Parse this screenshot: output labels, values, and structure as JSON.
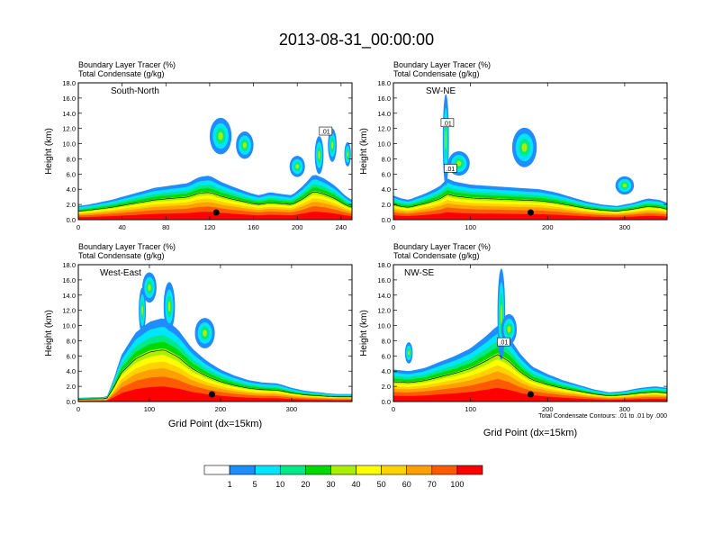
{
  "figure": {
    "title": "2013-08-31_00:00:00",
    "condensate_note": "Total Condensate Contours: .01 to .01 by .000",
    "colorbar": {
      "labels": [
        "1",
        "5",
        "10",
        "20",
        "30",
        "40",
        "50",
        "60",
        "70",
        "100"
      ],
      "colors": [
        "#ffffff",
        "#1f8cff",
        "#00e5ff",
        "#00e887",
        "#00d800",
        "#a8f000",
        "#ffff00",
        "#ffd200",
        "#ffa000",
        "#ff5a00",
        "#ff0000"
      ]
    }
  },
  "chart_data": [
    {
      "type": "heatmap",
      "variable_label": "Boundary Layer Tracer   (%)",
      "secondary_label": "Total Condensate   (g/kg)",
      "panel_label": "South-North",
      "ylabel": "Height (km)",
      "xlabel": "",
      "xlim": [
        0,
        250
      ],
      "ylim": [
        0,
        18
      ],
      "xticks": [
        "0",
        "40",
        "80",
        "120",
        "160",
        "200",
        "240"
      ],
      "yticks": [
        "0.0",
        "2.0",
        "4.0",
        "6.0",
        "8.0",
        "10.0",
        "12.0",
        "14.0",
        "16.0",
        "18.0"
      ],
      "marker_x": 126,
      "contour_labels": [
        {
          "x": 226,
          "y": 11.6,
          "text": ".01"
        }
      ],
      "profile": {
        "x": [
          0,
          10,
          30,
          50,
          70,
          90,
          100,
          110,
          120,
          130,
          140,
          155,
          165,
          175,
          185,
          195,
          205,
          215,
          225,
          235,
          245,
          250
        ],
        "top": [
          1.8,
          2.0,
          2.6,
          3.4,
          4.2,
          4.6,
          4.8,
          5.6,
          5.8,
          5.0,
          4.4,
          3.6,
          3.2,
          3.6,
          3.4,
          3.2,
          4.4,
          6.0,
          5.4,
          4.4,
          3.0,
          2.6
        ]
      },
      "plumes": [
        {
          "x": 130,
          "y": 11.0,
          "w": 10,
          "h": 2.4
        },
        {
          "x": 152,
          "y": 9.8,
          "w": 8,
          "h": 1.8
        },
        {
          "x": 200,
          "y": 7.0,
          "w": 7,
          "h": 1.4
        },
        {
          "x": 220,
          "y": 8.5,
          "w": 4,
          "h": 2.5
        },
        {
          "x": 232,
          "y": 9.8,
          "w": 4,
          "h": 2.2
        },
        {
          "x": 246,
          "y": 8.6,
          "w": 3,
          "h": 1.6
        }
      ]
    },
    {
      "type": "heatmap",
      "variable_label": "Boundary Layer Tracer   (%)",
      "secondary_label": "Total Condensate   (g/kg)",
      "panel_label": "SW-NE",
      "ylabel": "Height (km)",
      "xlabel": "",
      "xlim": [
        0,
        355
      ],
      "ylim": [
        0,
        18
      ],
      "xticks": [
        "0",
        "100",
        "200",
        "300"
      ],
      "yticks": [
        "0.0",
        "2.0",
        "4.0",
        "6.0",
        "8.0",
        "10.0",
        "12.0",
        "14.0",
        "16.0",
        "18.0"
      ],
      "marker_x": 178,
      "contour_labels": [
        {
          "x": 70,
          "y": 12.7,
          "text": ".01"
        },
        {
          "x": 74,
          "y": 6.7,
          "text": ".01"
        }
      ],
      "profile": {
        "x": [
          0,
          10,
          20,
          30,
          45,
          60,
          70,
          80,
          100,
          130,
          160,
          190,
          210,
          230,
          250,
          270,
          290,
          310,
          330,
          345,
          355
        ],
        "top": [
          3.2,
          2.8,
          2.6,
          3.0,
          3.6,
          4.4,
          5.4,
          5.0,
          4.6,
          4.4,
          4.2,
          4.0,
          3.6,
          3.0,
          2.4,
          2.0,
          1.8,
          2.2,
          2.8,
          2.6,
          2.2
        ]
      },
      "plumes": [
        {
          "x": 68,
          "y": 10.5,
          "w": 4,
          "h": 6.0
        },
        {
          "x": 170,
          "y": 9.5,
          "w": 16,
          "h": 2.6
        },
        {
          "x": 85,
          "y": 7.4,
          "w": 14,
          "h": 1.6
        },
        {
          "x": 300,
          "y": 4.5,
          "w": 12,
          "h": 1.2
        }
      ]
    },
    {
      "type": "heatmap",
      "variable_label": "Boundary Layer Tracer   (%)",
      "secondary_label": "Total Condensate   (g/kg)",
      "panel_label": "West-East",
      "ylabel": "Height (km)",
      "xlabel": "Grid Point (dx=15km)",
      "xlim": [
        0,
        385
      ],
      "ylim": [
        0,
        18
      ],
      "xticks": [
        "0",
        "100",
        "200",
        "300"
      ],
      "yticks": [
        "0.0",
        "2.0",
        "4.0",
        "6.0",
        "8.0",
        "10.0",
        "12.0",
        "14.0",
        "16.0",
        "18.0"
      ],
      "marker_x": 188,
      "contour_labels": [],
      "profile": {
        "x": [
          0,
          40,
          50,
          60,
          80,
          100,
          120,
          140,
          160,
          180,
          200,
          220,
          240,
          260,
          280,
          300,
          320,
          340,
          360,
          385
        ],
        "top": [
          0.5,
          0.6,
          3.0,
          6.0,
          9.0,
          10.5,
          11.0,
          9.5,
          7.0,
          5.4,
          4.2,
          3.4,
          2.8,
          2.5,
          2.4,
          1.8,
          1.4,
          1.2,
          1.0,
          1.0
        ]
      },
      "plumes": [
        {
          "x": 100,
          "y": 15.0,
          "w": 10,
          "h": 2.0
        },
        {
          "x": 128,
          "y": 12.5,
          "w": 8,
          "h": 3.2
        },
        {
          "x": 90,
          "y": 12.0,
          "w": 5,
          "h": 3.0
        },
        {
          "x": 178,
          "y": 9.0,
          "w": 14,
          "h": 2.0
        }
      ]
    },
    {
      "type": "heatmap",
      "variable_label": "Boundary Layer Tracer   (%)",
      "secondary_label": "Total Condensate   (g/kg)",
      "panel_label": "NW-SE",
      "ylabel": "Height (km)",
      "xlabel": "Grid Point (dx=15km)",
      "xlim": [
        0,
        355
      ],
      "ylim": [
        0,
        18
      ],
      "xticks": [
        "0",
        "100",
        "200",
        "300"
      ],
      "yticks": [
        "0.0",
        "2.0",
        "4.0",
        "6.0",
        "8.0",
        "10.0",
        "12.0",
        "14.0",
        "16.0",
        "18.0"
      ],
      "marker_x": 178,
      "contour_labels": [
        {
          "x": 143,
          "y": 7.8,
          "text": ".01"
        }
      ],
      "profile": {
        "x": [
          0,
          20,
          40,
          60,
          80,
          100,
          120,
          135,
          150,
          165,
          180,
          200,
          220,
          240,
          260,
          280,
          300,
          320,
          340,
          355
        ],
        "top": [
          4.2,
          4.0,
          4.4,
          5.2,
          6.0,
          7.0,
          8.6,
          10.0,
          8.5,
          6.2,
          4.6,
          3.6,
          2.8,
          2.2,
          1.6,
          1.2,
          1.4,
          1.8,
          2.0,
          1.8
        ]
      },
      "plumes": [
        {
          "x": 140,
          "y": 11.5,
          "w": 5,
          "h": 6.0
        },
        {
          "x": 20,
          "y": 6.4,
          "w": 5,
          "h": 1.4
        },
        {
          "x": 150,
          "y": 9.5,
          "w": 10,
          "h": 2.0
        }
      ]
    }
  ]
}
